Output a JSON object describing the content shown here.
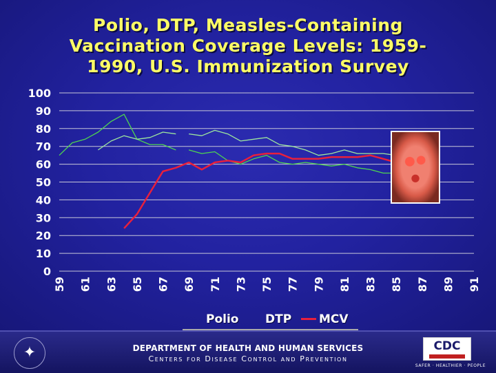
{
  "title_lines": [
    "Polio, DTP, Measles-Containing",
    "Vaccination Coverage Levels: 1959-",
    "1990, U.S. Immunization Survey"
  ],
  "colors": {
    "polio": "#4fd64f",
    "dtp": "#9ee89e",
    "mcv": "#e8203c",
    "title": "#ffff66",
    "axis_text": "#ffffff",
    "grid": "#c8c8d8"
  },
  "chart_data": {
    "type": "line",
    "title": "Polio, DTP, Measles-Containing Vaccination Coverage Levels: 1959-1990, U.S. Immunization Survey",
    "xlabel": "",
    "ylabel": "",
    "xlim": [
      59,
      91
    ],
    "ylim": [
      0,
      100
    ],
    "x_ticks": [
      "59",
      "61",
      "63",
      "65",
      "67",
      "69",
      "71",
      "73",
      "75",
      "77",
      "79",
      "81",
      "83",
      "85",
      "87",
      "89",
      "91"
    ],
    "y_ticks": [
      "0",
      "10",
      "20",
      "30",
      "40",
      "50",
      "60",
      "70",
      "80",
      "90",
      "100"
    ],
    "grid": "horizontal",
    "legend_placement": "bottom",
    "series": [
      {
        "name": "Polio",
        "color_key": "polio",
        "points": [
          [
            59,
            65
          ],
          [
            60,
            72
          ],
          [
            61,
            74
          ],
          [
            62,
            78
          ],
          [
            63,
            84
          ],
          [
            64,
            88
          ],
          [
            65,
            74
          ],
          [
            66,
            71
          ],
          [
            67,
            71
          ],
          [
            68,
            68
          ],
          null,
          [
            69,
            68
          ],
          [
            70,
            66
          ],
          [
            71,
            67
          ],
          [
            72,
            62
          ],
          [
            73,
            60
          ],
          [
            74,
            63
          ],
          [
            75,
            65
          ],
          [
            76,
            61
          ],
          [
            77,
            60
          ],
          [
            78,
            61
          ],
          [
            79,
            60
          ],
          [
            80,
            59
          ],
          [
            81,
            60
          ],
          [
            82,
            58
          ],
          [
            83,
            57
          ],
          [
            84,
            55
          ],
          [
            85,
            55
          ]
        ]
      },
      {
        "name": "DTP",
        "color_key": "dtp",
        "points": [
          [
            62,
            68
          ],
          [
            63,
            73
          ],
          [
            64,
            76
          ],
          [
            65,
            74
          ],
          [
            66,
            75
          ],
          [
            67,
            78
          ],
          [
            68,
            77
          ],
          null,
          [
            69,
            77
          ],
          [
            70,
            76
          ],
          [
            71,
            79
          ],
          [
            72,
            77
          ],
          [
            73,
            73
          ],
          [
            74,
            74
          ],
          [
            75,
            75
          ],
          [
            76,
            71
          ],
          [
            77,
            70
          ],
          [
            78,
            68
          ],
          [
            79,
            65
          ],
          [
            80,
            66
          ],
          [
            81,
            68
          ],
          [
            82,
            66
          ],
          [
            83,
            66
          ],
          [
            84,
            66
          ],
          [
            85,
            65
          ]
        ]
      },
      {
        "name": "MCV",
        "color_key": "mcv",
        "points": [
          [
            64,
            24
          ],
          [
            65,
            32
          ],
          [
            66,
            44
          ],
          [
            67,
            56
          ],
          [
            68,
            58
          ],
          [
            69,
            61
          ],
          [
            70,
            57
          ],
          [
            71,
            61
          ],
          [
            72,
            62
          ],
          [
            73,
            61
          ],
          [
            74,
            65
          ],
          [
            75,
            66
          ],
          [
            76,
            66
          ],
          [
            77,
            63
          ],
          [
            78,
            63
          ],
          [
            79,
            63
          ],
          [
            80,
            64
          ],
          [
            81,
            64
          ],
          [
            82,
            64
          ],
          [
            83,
            65
          ],
          [
            84,
            63
          ],
          [
            85,
            61
          ]
        ]
      }
    ]
  },
  "legend": [
    {
      "label": "Polio",
      "color_key": "polio"
    },
    {
      "label": "DTP",
      "color_key": "dtp"
    },
    {
      "label": "MCV",
      "color_key": "mcv"
    }
  ],
  "footer": {
    "department": "DEPARTMENT OF HEALTH AND HUMAN SERVICES",
    "centers": "Centers for Disease Control and Prevention",
    "cdc_logo_text": "CDC",
    "tagline": "SAFER · HEALTHIER · PEOPLE"
  },
  "photo_icon": "child-with-measles-rash"
}
